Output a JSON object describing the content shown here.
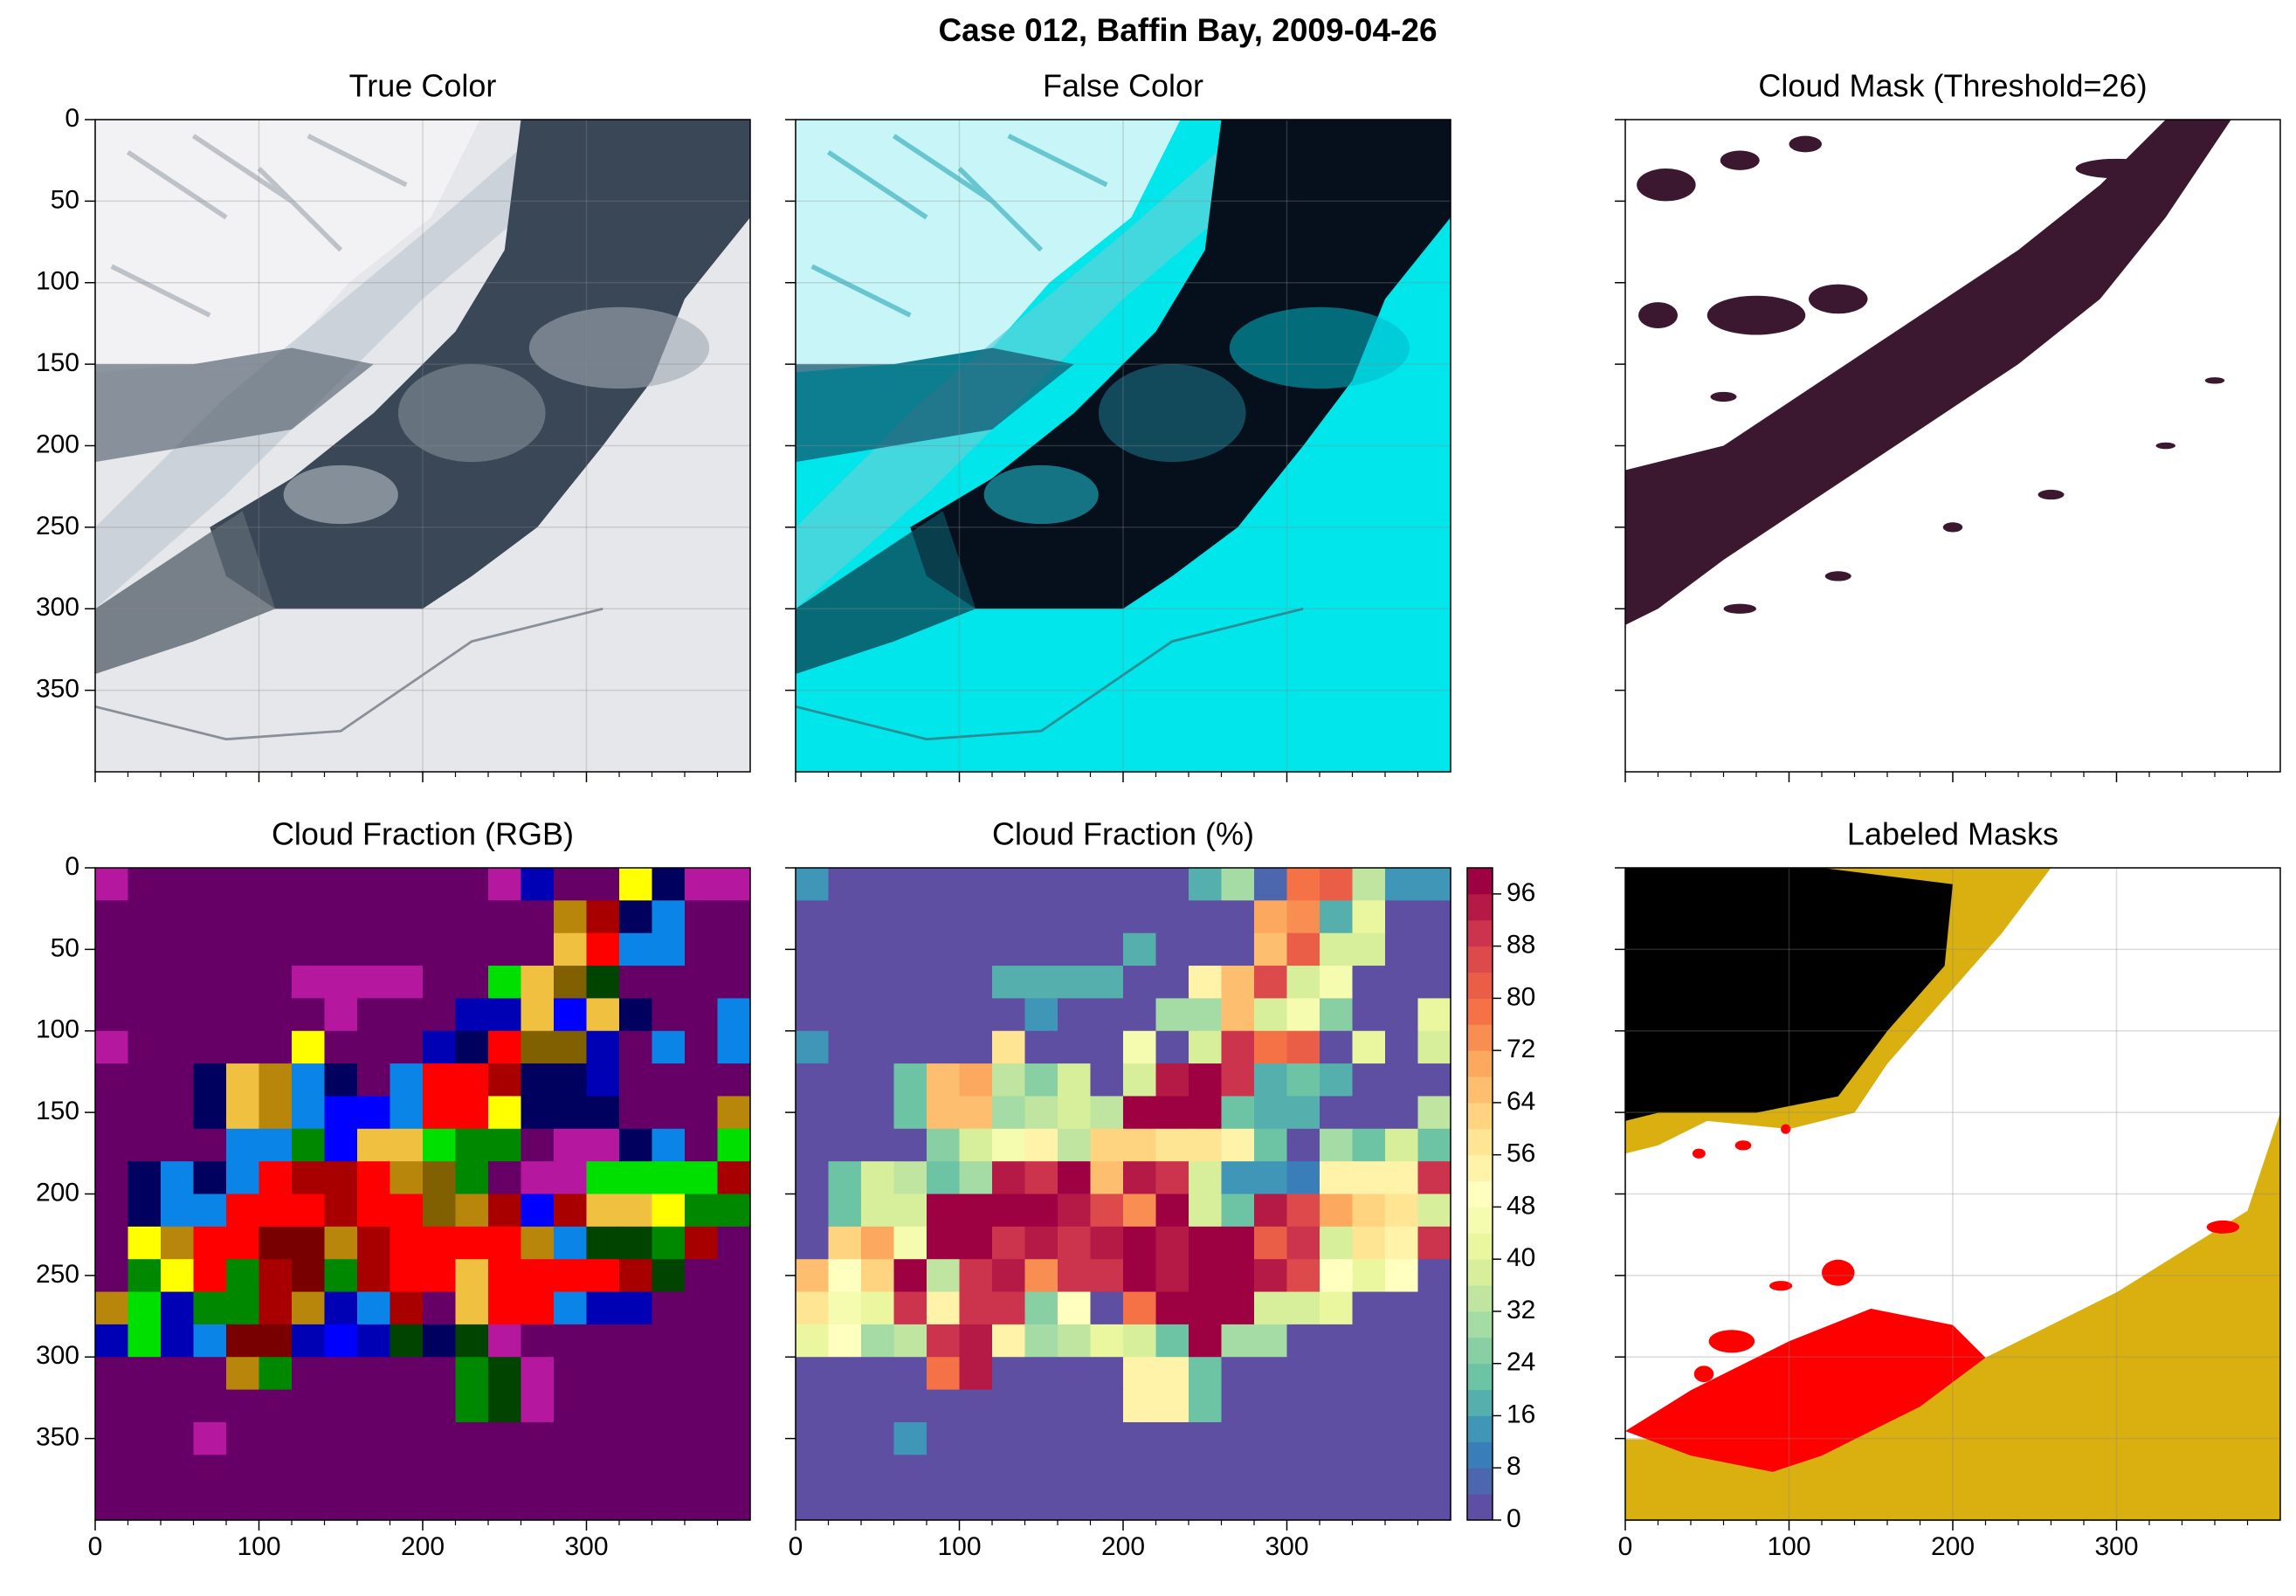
{
  "title": "Case 012, Baffin Bay, 2009-04-26",
  "chart_data": [
    {
      "type": "image",
      "title": "True Color",
      "xlim": [
        0,
        400
      ],
      "ylim": [
        400,
        0
      ],
      "xticks": [
        0,
        100,
        200,
        300
      ],
      "yticks": [
        0,
        50,
        100,
        150,
        200,
        250,
        300,
        350
      ],
      "grid": true,
      "xticklabels": false,
      "yticklabels": true
    },
    {
      "type": "image",
      "title": "False Color",
      "xlim": [
        0,
        400
      ],
      "ylim": [
        400,
        0
      ],
      "xticks": [
        0,
        100,
        200,
        300
      ],
      "yticks": [
        0,
        50,
        100,
        150,
        200,
        250,
        300,
        350
      ],
      "grid": true,
      "xticklabels": false,
      "yticklabels": false
    },
    {
      "type": "image",
      "title": "Cloud Mask (Threshold=26)",
      "xlim": [
        0,
        400
      ],
      "ylim": [
        400,
        0
      ],
      "xticks": [
        0,
        100,
        200,
        300
      ],
      "yticks": [
        0,
        50,
        100,
        150,
        200,
        250,
        300,
        350
      ],
      "grid": false,
      "xticklabels": false,
      "yticklabels": false
    },
    {
      "type": "heatmap",
      "title": "Cloud Fraction (RGB)",
      "xlim": [
        0,
        400
      ],
      "ylim": [
        400,
        0
      ],
      "xticks": [
        0,
        100,
        200,
        300
      ],
      "yticks": [
        0,
        50,
        100,
        150,
        200,
        250,
        300,
        350
      ],
      "grid": false,
      "xticklabels": true,
      "yticklabels": true,
      "palette": {
        "p": "#660066",
        "m": "#b5179e",
        "n": "#00005e",
        "b": "#0000b4",
        "B": "#0000ff",
        "c": "#0a84e6",
        "r": "#ff0000",
        "d": "#a80000",
        "D": "#780000",
        "o": "#b8860b",
        "g": "#f0c040",
        "y": "#ffff00",
        "G": "#008800",
        "l": "#00e000",
        "k": "#004400",
        "w": "#806000"
      },
      "z": [
        "mpppppppppppmbppynmm",
        "ppppppppppppppodncpp",
        "ppppppppppppppgrccpp",
        "ppppppmmmmpplgwkpppp",
        "pppppppmpppbbgBgnppc",
        "mpppppypppbnrwwbpcpc",
        "pppngocnpcrrdnnbpppp",
        "pppngocBBcrrynnnpppo",
        "ppppccGBgglGGpmmncpl",
        "pncncrddrowGpmmlllld",
        "pnccrrrdrrwodBdggyGG",
        "pyorrDDodrrrrockkGdp",
        "pGyrGdDGdrrgrrrrdkpp",
        "olbGGdobcdpgrrcbbppp",
        "blbcDDbBbknkmppppppp",
        "ppppoGpppppGkmpppppp",
        "pppppppppppGkmpppppp",
        "pppmpppppppppppppppp",
        "pppppppppppppppppppp",
        "pppppppppppppppppppp"
      ]
    },
    {
      "type": "heatmap",
      "title": "Cloud Fraction (%)",
      "xlim": [
        0,
        400
      ],
      "ylim": [
        400,
        0
      ],
      "xticks": [
        0,
        100,
        200,
        300
      ],
      "yticks": [
        0,
        50,
        100,
        150,
        200,
        250,
        300,
        350
      ],
      "grid": false,
      "xticklabels": true,
      "yticklabels": false,
      "clim": [
        0,
        100
      ],
      "cticks": [
        0,
        8,
        16,
        24,
        32,
        40,
        48,
        56,
        64,
        72,
        80,
        88,
        96
      ],
      "colors": [
        "#5e4fa2",
        "#4c67ad",
        "#397eb8",
        "#3f96b7",
        "#55afad",
        "#6cc4a5",
        "#88cfa4",
        "#a5dba4",
        "#bfe5a0",
        "#d7ef9b",
        "#eaf79f",
        "#f5fbaf",
        "#ffffbf",
        "#fff2a9",
        "#fee594",
        "#fed481",
        "#fdbf6f",
        "#fca95f",
        "#f98e52",
        "#f57246",
        "#ea5d47",
        "#dd4a4c",
        "#cc344d",
        "#b51a47",
        "#9e0142"
      ],
      "z": [
        [
          12,
          0,
          0,
          0,
          0,
          0,
          0,
          0,
          0,
          0,
          0,
          0,
          16,
          28,
          4,
          76,
          80,
          32,
          12,
          12
        ],
        [
          0,
          0,
          0,
          0,
          0,
          0,
          0,
          0,
          0,
          0,
          0,
          0,
          0,
          0,
          68,
          72,
          16,
          40,
          0,
          0
        ],
        [
          0,
          0,
          0,
          0,
          0,
          0,
          0,
          0,
          0,
          0,
          16,
          0,
          0,
          0,
          64,
          80,
          36,
          36,
          0,
          0
        ],
        [
          0,
          0,
          0,
          0,
          0,
          0,
          16,
          16,
          16,
          16,
          0,
          0,
          52,
          64,
          84,
          36,
          44,
          0,
          0,
          0
        ],
        [
          0,
          0,
          0,
          0,
          0,
          0,
          0,
          12,
          0,
          0,
          0,
          28,
          28,
          64,
          36,
          44,
          24,
          0,
          0,
          40
        ],
        [
          12,
          0,
          0,
          0,
          0,
          0,
          56,
          0,
          0,
          0,
          44,
          0,
          36,
          88,
          76,
          80,
          0,
          40,
          0,
          36
        ],
        [
          0,
          0,
          0,
          20,
          64,
          68,
          32,
          24,
          36,
          0,
          36,
          92,
          96,
          88,
          16,
          20,
          16,
          0,
          0,
          0
        ],
        [
          0,
          0,
          0,
          20,
          64,
          64,
          28,
          32,
          36,
          32,
          96,
          96,
          96,
          20,
          16,
          16,
          0,
          0,
          0,
          32
        ],
        [
          0,
          0,
          0,
          0,
          24,
          36,
          44,
          52,
          32,
          60,
          60,
          56,
          56,
          52,
          20,
          0,
          28,
          20,
          36,
          20
        ],
        [
          0,
          20,
          36,
          32,
          20,
          28,
          92,
          88,
          96,
          64,
          92,
          88,
          36,
          12,
          12,
          8,
          52,
          52,
          52,
          88
        ],
        [
          0,
          20,
          36,
          36,
          96,
          96,
          96,
          96,
          92,
          84,
          72,
          96,
          36,
          20,
          92,
          84,
          68,
          60,
          56,
          36
        ],
        [
          0,
          60,
          68,
          44,
          96,
          96,
          88,
          92,
          88,
          92,
          96,
          92,
          96,
          96,
          80,
          88,
          36,
          56,
          52,
          88
        ],
        [
          64,
          48,
          60,
          96,
          32,
          88,
          92,
          72,
          88,
          88,
          96,
          92,
          96,
          96,
          92,
          84,
          48,
          40,
          48,
          0
        ],
        [
          56,
          44,
          40,
          88,
          52,
          88,
          88,
          24,
          48,
          0,
          76,
          96,
          96,
          96,
          36,
          36,
          40,
          0,
          0,
          0
        ],
        [
          40,
          48,
          28,
          32,
          88,
          92,
          52,
          28,
          32,
          40,
          36,
          20,
          96,
          28,
          28,
          0,
          0,
          0,
          0,
          0
        ],
        [
          0,
          0,
          0,
          0,
          76,
          92,
          0,
          0,
          0,
          0,
          52,
          52,
          20,
          0,
          0,
          0,
          0,
          0,
          0,
          0
        ],
        [
          0,
          0,
          0,
          0,
          0,
          0,
          0,
          0,
          0,
          0,
          52,
          52,
          20,
          0,
          0,
          0,
          0,
          0,
          0,
          0
        ],
        [
          0,
          0,
          0,
          12,
          0,
          0,
          0,
          0,
          0,
          0,
          0,
          0,
          0,
          0,
          0,
          0,
          0,
          0,
          0,
          0
        ],
        [
          0,
          0,
          0,
          0,
          0,
          0,
          0,
          0,
          0,
          0,
          0,
          0,
          0,
          0,
          0,
          0,
          0,
          0,
          0,
          0
        ],
        [
          0,
          0,
          0,
          0,
          0,
          0,
          0,
          0,
          0,
          0,
          0,
          0,
          0,
          0,
          0,
          0,
          0,
          0,
          0,
          0
        ]
      ]
    },
    {
      "type": "image",
      "title": "Labeled Masks",
      "xlim": [
        0,
        400
      ],
      "ylim": [
        400,
        0
      ],
      "xticks": [
        0,
        100,
        200,
        300
      ],
      "yticks": [
        0,
        50,
        100,
        150,
        200,
        250,
        300,
        350
      ],
      "grid": true,
      "xticklabels": true,
      "yticklabels": false
    }
  ]
}
